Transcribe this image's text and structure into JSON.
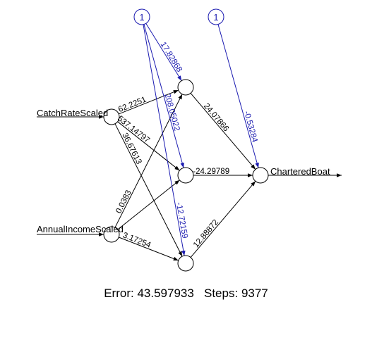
{
  "network": {
    "inputs": [
      "CatchRateScaled",
      "AnnualIncomeScaled"
    ],
    "output": "CharteredBoat",
    "bias_label": "1",
    "colors": {
      "edge": "#000000",
      "bias_edge": "#1a1ab0"
    },
    "weights": {
      "input_to_hidden": [
        {
          "from": "CatchRateScaled",
          "to": "hidden-1",
          "label": "62.2251"
        },
        {
          "from": "CatchRateScaled",
          "to": "hidden-2",
          "label": "537.14797"
        },
        {
          "from": "CatchRateScaled",
          "to": "hidden-3",
          "label": "36.67613"
        },
        {
          "from": "AnnualIncomeScaled",
          "to": "hidden-1",
          "label": "0.0383"
        },
        {
          "from": "AnnualIncomeScaled",
          "to": "hidden-2",
          "label": ""
        },
        {
          "from": "AnnualIncomeScaled",
          "to": "hidden-3",
          "label": "3.17254"
        }
      ],
      "bias_to_hidden": [
        {
          "to": "hidden-1",
          "label": "17.82868"
        },
        {
          "to": "hidden-2",
          "label": "208.05022"
        },
        {
          "to": "hidden-3",
          "label": "-12.72159"
        }
      ],
      "hidden_to_output": [
        {
          "from": "hidden-1",
          "label": "24.07866"
        },
        {
          "from": "hidden-2",
          "label": "-24.29789"
        },
        {
          "from": "hidden-3",
          "label": "12.88872"
        }
      ],
      "bias_to_output": {
        "label": "-0.53284"
      }
    }
  },
  "footer": {
    "error_label": "Error:",
    "error_value": "43.597933",
    "steps_label": "Steps:",
    "steps_value": "9377"
  }
}
